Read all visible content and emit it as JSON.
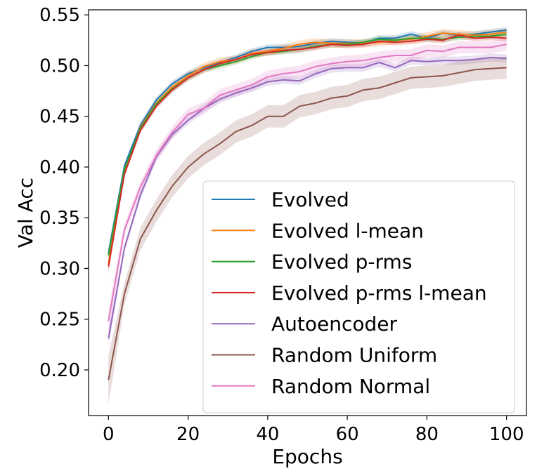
{
  "chart_data": {
    "type": "line",
    "xlabel": "Epochs",
    "ylabel": "Val Acc",
    "xlim": [
      -5,
      105
    ],
    "ylim": [
      0.155,
      0.555
    ],
    "xticks": [
      0,
      20,
      40,
      60,
      80,
      100
    ],
    "xtick_labels": [
      "0",
      "20",
      "40",
      "60",
      "80",
      "100"
    ],
    "yticks": [
      0.2,
      0.25,
      0.3,
      0.35,
      0.4,
      0.45,
      0.5,
      0.55
    ],
    "ytick_labels": [
      "0.20",
      "0.25",
      "0.30",
      "0.35",
      "0.40",
      "0.45",
      "0.50",
      "0.55"
    ],
    "grid": false,
    "legend_position": "lower-right",
    "x": [
      0,
      4,
      8,
      12,
      16,
      20,
      24,
      28,
      32,
      36,
      40,
      44,
      48,
      52,
      56,
      60,
      64,
      68,
      72,
      76,
      80,
      84,
      88,
      92,
      96,
      100
    ],
    "series": [
      {
        "name": "Evolved",
        "color": "#1f77b4",
        "band": 0.003,
        "values": [
          0.315,
          0.401,
          0.441,
          0.466,
          0.482,
          0.492,
          0.498,
          0.503,
          0.508,
          0.514,
          0.518,
          0.518,
          0.519,
          0.522,
          0.524,
          0.523,
          0.522,
          0.527,
          0.527,
          0.531,
          0.527,
          0.532,
          0.53,
          0.531,
          0.533,
          0.535
        ]
      },
      {
        "name": "Evolved l-mean",
        "color": "#ff7f0e",
        "band": 0.004,
        "values": [
          0.305,
          0.395,
          0.439,
          0.463,
          0.479,
          0.49,
          0.499,
          0.504,
          0.506,
          0.512,
          0.514,
          0.517,
          0.521,
          0.523,
          0.522,
          0.522,
          0.522,
          0.523,
          0.525,
          0.526,
          0.529,
          0.532,
          0.531,
          0.53,
          0.531,
          0.533
        ]
      },
      {
        "name": "Evolved p-rms",
        "color": "#2ca02c",
        "band": 0.003,
        "values": [
          0.313,
          0.398,
          0.438,
          0.462,
          0.477,
          0.488,
          0.496,
          0.5,
          0.504,
          0.509,
          0.513,
          0.514,
          0.516,
          0.519,
          0.521,
          0.521,
          0.523,
          0.526,
          0.525,
          0.527,
          0.527,
          0.526,
          0.528,
          0.529,
          0.529,
          0.531
        ]
      },
      {
        "name": "Evolved p-rms l-mean",
        "color": "#d62728",
        "band": 0.003,
        "values": [
          0.302,
          0.393,
          0.436,
          0.46,
          0.476,
          0.488,
          0.496,
          0.502,
          0.506,
          0.511,
          0.513,
          0.515,
          0.516,
          0.518,
          0.521,
          0.52,
          0.521,
          0.524,
          0.523,
          0.524,
          0.526,
          0.525,
          0.53,
          0.527,
          0.528,
          0.527
        ]
      },
      {
        "name": "Autoencoder",
        "color": "#9467bd",
        "band": 0.004,
        "values": [
          0.231,
          0.32,
          0.372,
          0.41,
          0.432,
          0.446,
          0.458,
          0.467,
          0.473,
          0.478,
          0.484,
          0.486,
          0.485,
          0.492,
          0.497,
          0.498,
          0.498,
          0.503,
          0.498,
          0.505,
          0.504,
          0.505,
          0.505,
          0.506,
          0.508,
          0.507
        ]
      },
      {
        "name": "Random Uniform",
        "color": "#8c564b",
        "band": 0.011,
        "values": [
          0.19,
          0.275,
          0.329,
          0.357,
          0.381,
          0.4,
          0.413,
          0.423,
          0.435,
          0.441,
          0.45,
          0.45,
          0.46,
          0.463,
          0.468,
          0.47,
          0.476,
          0.478,
          0.483,
          0.488,
          0.489,
          0.49,
          0.493,
          0.496,
          0.497,
          0.498
        ]
      },
      {
        "name": "Random Normal",
        "color": "#e377c2",
        "band": 0.006,
        "values": [
          0.248,
          0.338,
          0.38,
          0.411,
          0.434,
          0.452,
          0.458,
          0.471,
          0.476,
          0.481,
          0.489,
          0.492,
          0.494,
          0.499,
          0.502,
          0.504,
          0.505,
          0.508,
          0.51,
          0.51,
          0.515,
          0.514,
          0.518,
          0.518,
          0.518,
          0.521
        ]
      }
    ]
  }
}
